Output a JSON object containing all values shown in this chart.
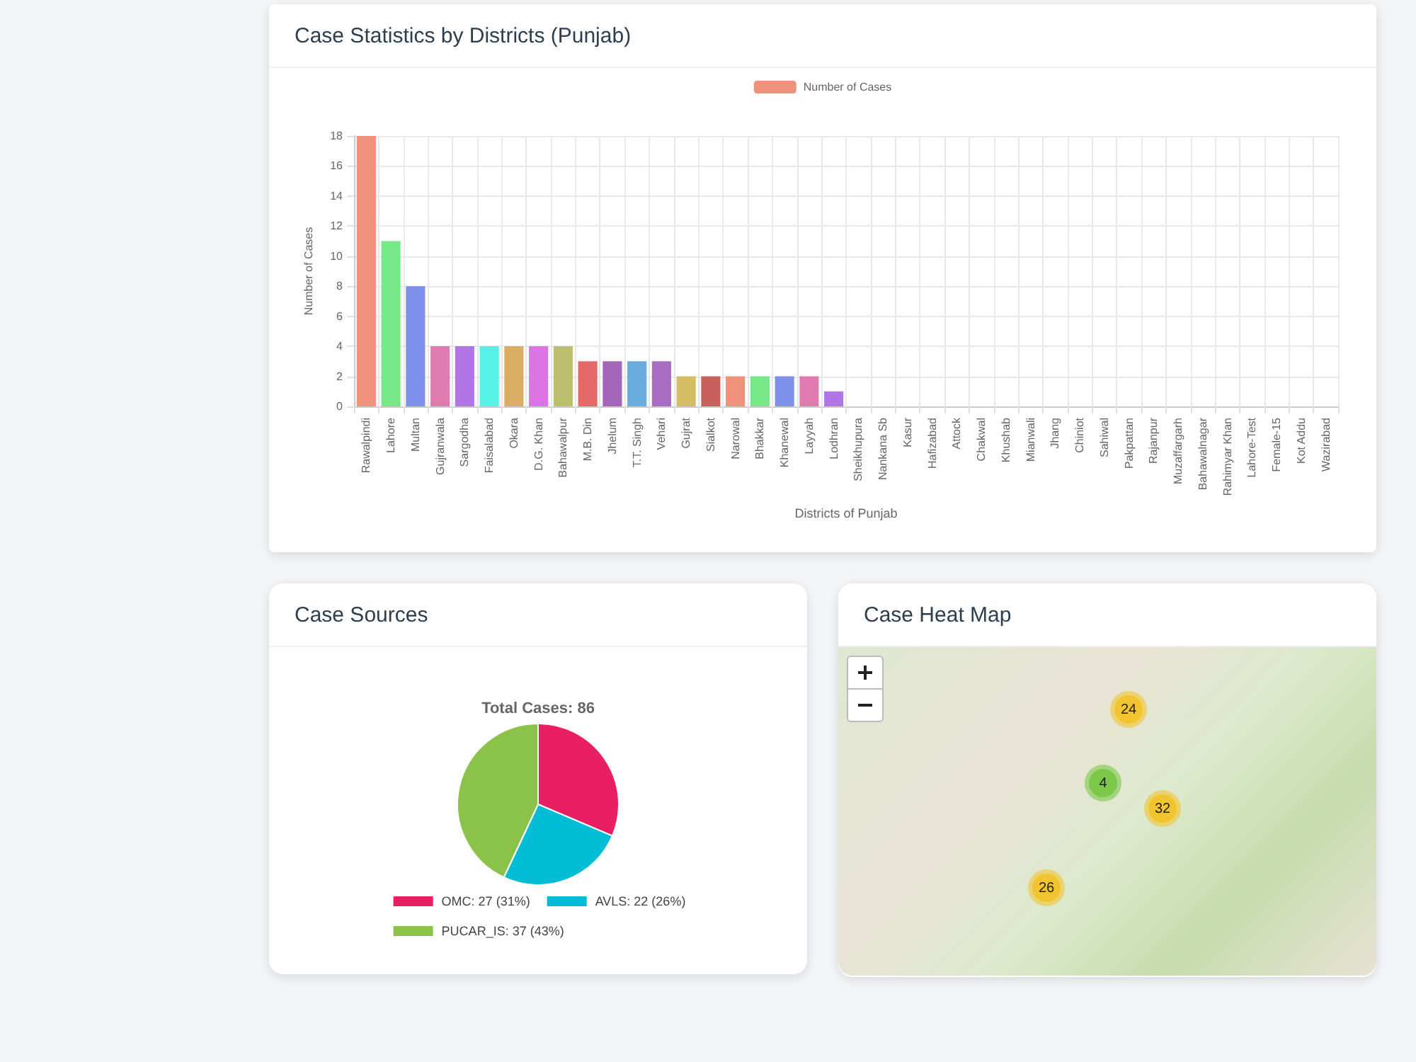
{
  "chart_data": [
    {
      "type": "bar",
      "title": "Case Statistics by Districts (Punjab)",
      "xlabel": "Districts of Punjab",
      "ylabel": "Number of Cases",
      "categories": [
        "Rawalpindi",
        "Lahore",
        "Multan",
        "Gujranwala",
        "Sargodha",
        "Faisalabad",
        "Okara",
        "D.G. Khan",
        "Bahawalpur",
        "M.B. Din",
        "Jhelum",
        "T.T. Singh",
        "Vehari",
        "Gujrat",
        "Sialkot",
        "Narowal",
        "Bhakkar",
        "Khanewal",
        "Layyah",
        "Lodhran",
        "Sheikhupura",
        "Nankana Sb",
        "Kasur",
        "Hafizabad",
        "Attock",
        "Chakwal",
        "Khushab",
        "Mianwali",
        "Jhang",
        "Chiniot",
        "Sahiwal",
        "Pakpattan",
        "Rajanpur",
        "Muzaffargarh",
        "Bahawalnagar",
        "Rahimyar Khan",
        "Lahore-Test",
        "Female-15",
        "Kot Addu",
        "Wazirabad"
      ],
      "series": [
        {
          "name": "Number of Cases",
          "color": "#f0917b",
          "colors": [
            "#f0917b",
            "#77e887",
            "#7f90ea",
            "#e07bb0",
            "#b076e5",
            "#57f1e8",
            "#d9ad62",
            "#dd74e6",
            "#bbbf6e",
            "#e46a6a",
            "#a466b8",
            "#69acdc",
            "#a86cc0",
            "#d4bd62",
            "#c8605d",
            "#f0917b",
            "#77e887",
            "#7f90ea",
            "#e07bb0",
            "#b076e5",
            "#57f1e8",
            "#d9ad62",
            "#dd74e6",
            "#bbbf6e",
            "#e46a6a",
            "#a466b8",
            "#69acdc",
            "#a86cc0",
            "#d4bd62",
            "#c8605d",
            "#f0917b",
            "#77e887",
            "#7f90ea",
            "#e07bb0",
            "#b076e5",
            "#57f1e8",
            "#d9ad62",
            "#dd74e6",
            "#bbbf6e",
            "#e46a6a"
          ],
          "values": [
            18,
            11,
            8,
            4,
            4,
            4,
            4,
            4,
            4,
            3,
            3,
            3,
            3,
            2,
            2,
            2,
            2,
            2,
            2,
            1,
            0,
            0,
            0,
            0,
            0,
            0,
            0,
            0,
            0,
            0,
            0,
            0,
            0,
            0,
            0,
            0,
            0,
            0,
            0,
            0
          ]
        }
      ],
      "ylim": [
        0,
        18
      ],
      "yticks": [
        0,
        2,
        4,
        6,
        8,
        10,
        12,
        14,
        16,
        18
      ],
      "grid": true,
      "legend": "top"
    },
    {
      "type": "pie",
      "title": "Case Sources",
      "subtitle": "Total Cases: 86",
      "categories": [
        "OMC: 27 (31%)",
        "AVLS: 22 (26%)",
        "PUCAR_IS: 37 (43%)"
      ],
      "values": [
        27,
        22,
        37
      ],
      "colors": [
        "#e91e63",
        "#00bcd4",
        "#8bc34a"
      ],
      "legend": "bottom"
    },
    {
      "type": "other",
      "title": "Case Heat Map",
      "annotations": [
        "24",
        "4",
        "32",
        "26"
      ]
    }
  ]
}
